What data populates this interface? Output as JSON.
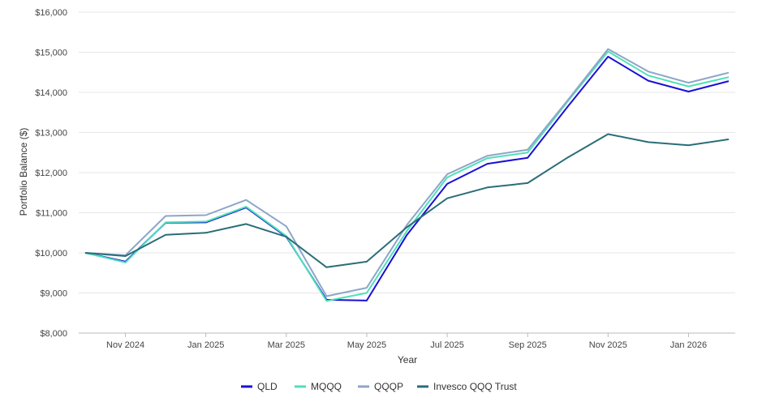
{
  "chart_data": {
    "type": "line",
    "xlabel": "Year",
    "ylabel": "Portfolio Balance ($)",
    "ylim": [
      8000,
      16000
    ],
    "y_ticks": [
      8000,
      9000,
      10000,
      11000,
      12000,
      13000,
      14000,
      15000,
      16000
    ],
    "y_tick_labels": [
      "$8,000",
      "$9,000",
      "$10,000",
      "$11,000",
      "$12,000",
      "$13,000",
      "$14,000",
      "$15,000",
      "$16,000"
    ],
    "x": [
      "2024-10",
      "2024-11",
      "2024-12",
      "2025-01",
      "2025-02",
      "2025-03",
      "2025-04",
      "2025-05",
      "2025-06",
      "2025-07",
      "2025-08",
      "2025-09",
      "2025-10",
      "2025-11",
      "2025-12",
      "2026-01",
      "2026-02"
    ],
    "x_tick_labels": [
      {
        "month": "2024-11",
        "label": "Nov 2024"
      },
      {
        "month": "2025-01",
        "label": "Jan 2025"
      },
      {
        "month": "2025-03",
        "label": "Mar 2025"
      },
      {
        "month": "2025-05",
        "label": "May 2025"
      },
      {
        "month": "2025-07",
        "label": "Jul 2025"
      },
      {
        "month": "2025-09",
        "label": "Sep 2025"
      },
      {
        "month": "2025-11",
        "label": "Nov 2025"
      },
      {
        "month": "2026-01",
        "label": "Jan 2026"
      }
    ],
    "grid": true,
    "legend_position": "bottom",
    "series": [
      {
        "name": "QLD",
        "color": "#1a0fd6",
        "values": [
          10000,
          9780,
          10750,
          10760,
          11130,
          10400,
          8830,
          8810,
          10450,
          11720,
          12220,
          12370,
          13650,
          14890,
          14290,
          14020,
          14280
        ]
      },
      {
        "name": "MQQQ",
        "color": "#4ee0b8",
        "values": [
          10000,
          9760,
          10760,
          10780,
          11150,
          10420,
          8800,
          9000,
          10550,
          11880,
          12360,
          12500,
          13780,
          15020,
          14420,
          14150,
          14380
        ]
      },
      {
        "name": "QQQP",
        "color": "#8da6c8",
        "values": [
          10000,
          9940,
          10920,
          10940,
          11320,
          10660,
          8920,
          9130,
          10700,
          11960,
          12420,
          12570,
          13810,
          15080,
          14520,
          14240,
          14490
        ]
      },
      {
        "name": "Invesco QQQ Trust",
        "color": "#2a6d78",
        "values": [
          10000,
          9920,
          10450,
          10500,
          10720,
          10400,
          9640,
          9780,
          10640,
          11360,
          11630,
          11740,
          12380,
          12960,
          12760,
          12680,
          12830
        ]
      }
    ]
  }
}
